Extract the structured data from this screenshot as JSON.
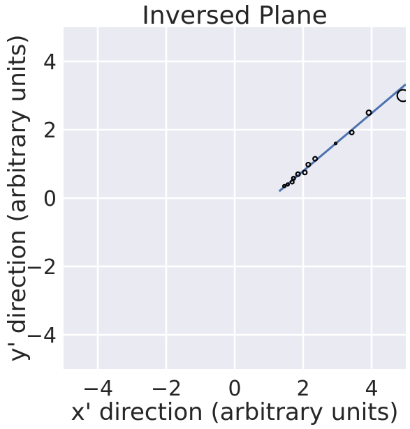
{
  "chart_data": {
    "type": "scatter",
    "title": "Inversed Plane",
    "xlabel": "x' direction (arbitrary units)",
    "ylabel": "y' direction (arbitrary units)",
    "xlim": [
      -5,
      5
    ],
    "ylim": [
      -5,
      5
    ],
    "grid": true,
    "x_ticks": [
      -4,
      -2,
      0,
      2,
      4
    ],
    "y_ticks": [
      -4,
      -2,
      0,
      2,
      4
    ],
    "x_tick_labels": [
      "−4",
      "−2",
      "0",
      "2",
      "4"
    ],
    "y_tick_labels": [
      "−4",
      "−2",
      "0",
      "2",
      "4"
    ],
    "colors": {
      "background": "#EAEAF2",
      "grid": "#FFFFFF",
      "fit_line": "#4C72B0",
      "markers": "#000000"
    },
    "series": [
      {
        "type": "scatter",
        "points": [
          {
            "x": 1.45,
            "y": 0.35,
            "r": 0.04
          },
          {
            "x": 1.55,
            "y": 0.4,
            "r": 0.04
          },
          {
            "x": 1.68,
            "y": 0.47,
            "r": 0.05
          },
          {
            "x": 1.72,
            "y": 0.58,
            "r": 0.05
          },
          {
            "x": 1.85,
            "y": 0.7,
            "r": 0.06
          },
          {
            "x": 2.05,
            "y": 0.75,
            "r": 0.06
          },
          {
            "x": 2.15,
            "y": 0.98,
            "r": 0.06
          },
          {
            "x": 2.35,
            "y": 1.15,
            "r": 0.06
          },
          {
            "x": 2.95,
            "y": 1.6,
            "r": 0.03
          },
          {
            "x": 3.42,
            "y": 1.92,
            "r": 0.06
          },
          {
            "x": 3.92,
            "y": 2.5,
            "r": 0.07
          },
          {
            "x": 4.92,
            "y": 3.0,
            "r": 0.17
          }
        ]
      },
      {
        "type": "line",
        "x": [
          1.3,
          5.0
        ],
        "y": [
          0.2,
          3.33
        ]
      }
    ]
  }
}
